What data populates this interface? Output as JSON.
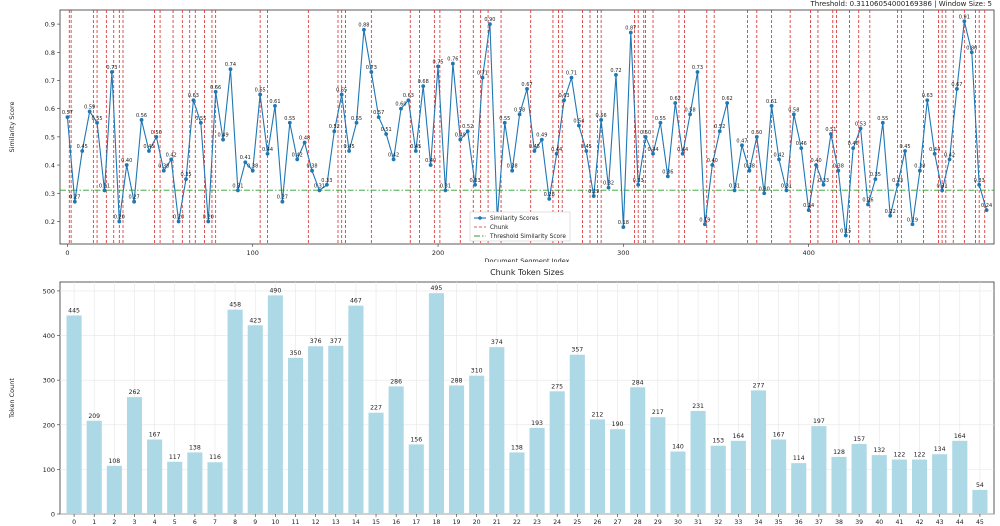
{
  "header": {
    "threshold_text": "Threshold: 0.31106054000169386 | Window Size: 5"
  },
  "chart_data": [
    {
      "type": "line",
      "title": "",
      "xlabel": "Document Segment Index",
      "ylabel": "Similarity Score",
      "xlim": [
        -4,
        500
      ],
      "ylim": [
        0.12,
        0.95
      ],
      "xticks": [
        0,
        100,
        200,
        300,
        400
      ],
      "yticks": [
        0.2,
        0.3,
        0.4,
        0.5,
        0.6,
        0.7,
        0.8,
        0.9
      ],
      "threshold": 0.311,
      "legend": [
        "Similarity Scores",
        "Chunk",
        "Threshold Similarity Score"
      ],
      "legend_position": "lower-center",
      "chunk_boundaries": [
        1,
        2,
        14,
        16,
        21,
        25,
        28,
        30,
        47,
        50,
        57,
        62,
        66,
        69,
        74,
        78,
        80,
        104,
        108,
        130,
        146,
        148,
        150,
        164,
        185,
        190,
        198,
        201,
        212,
        219,
        223,
        227,
        234,
        250,
        262,
        265,
        267,
        278,
        282,
        286,
        288,
        306,
        308,
        311,
        312,
        316,
        330,
        333,
        345,
        349,
        367,
        372,
        380,
        390,
        401,
        405,
        413,
        415,
        422,
        427,
        433,
        448,
        450,
        462,
        470,
        472,
        474,
        478,
        484,
        490,
        492,
        495
      ],
      "series": [
        {
          "name": "Similarity Scores",
          "x": [
            0,
            4,
            8,
            12,
            16,
            20,
            24,
            28,
            32,
            36,
            40,
            44,
            48,
            52,
            56,
            60,
            64,
            68,
            72,
            76,
            80,
            84,
            88,
            92,
            96,
            100,
            104,
            108,
            112,
            116,
            120,
            124,
            128,
            132,
            136,
            140,
            144,
            148,
            152,
            156,
            160,
            164,
            168,
            172,
            176,
            180,
            184,
            188,
            192,
            196,
            200,
            204,
            208,
            212,
            216,
            220,
            224,
            228,
            232,
            236,
            240,
            244,
            248,
            252,
            256,
            260,
            264,
            268,
            272,
            276,
            280,
            284,
            288,
            292,
            296,
            300,
            304,
            308,
            312,
            316,
            320,
            324,
            328,
            332,
            336,
            340,
            344,
            348,
            352,
            356,
            360,
            364,
            368,
            372,
            376,
            380,
            384,
            388,
            392,
            396,
            400,
            404,
            408,
            412,
            416,
            420,
            424,
            428,
            432,
            436,
            440,
            444,
            448,
            452,
            456,
            460,
            464,
            468,
            472,
            476,
            480,
            484,
            488,
            492,
            496
          ],
          "y": [
            0.57,
            0.27,
            0.45,
            0.59,
            0.55,
            0.31,
            0.73,
            0.2,
            0.4,
            0.27,
            0.56,
            0.45,
            0.5,
            0.38,
            0.42,
            0.2,
            0.35,
            0.63,
            0.55,
            0.2,
            0.66,
            0.49,
            0.74,
            0.31,
            0.41,
            0.38,
            0.65,
            0.44,
            0.61,
            0.27,
            0.55,
            0.42,
            0.48,
            0.38,
            0.31,
            0.33,
            0.52,
            0.65,
            0.45,
            0.55,
            0.88,
            0.73,
            0.57,
            0.51,
            0.42,
            0.6,
            0.63,
            0.45,
            0.68,
            0.4,
            0.75,
            0.31,
            0.76,
            0.49,
            0.52,
            0.33,
            0.71,
            0.9,
            0.21,
            0.55,
            0.38,
            0.58,
            0.67,
            0.45,
            0.49,
            0.28,
            0.44,
            0.63,
            0.71,
            0.54,
            0.45,
            0.29,
            0.56,
            0.32,
            0.72,
            0.18,
            0.87,
            0.33,
            0.5,
            0.44,
            0.55,
            0.36,
            0.62,
            0.44,
            0.58,
            0.73,
            0.19,
            0.4,
            0.52,
            0.62,
            0.31,
            0.47,
            0.38,
            0.5,
            0.3,
            0.61,
            0.42,
            0.31,
            0.58,
            0.46,
            0.24,
            0.4,
            0.33,
            0.51,
            0.38,
            0.15,
            0.46,
            0.53,
            0.26,
            0.35,
            0.55,
            0.22,
            0.33,
            0.45,
            0.19,
            0.38,
            0.63,
            0.44,
            0.31,
            0.42,
            0.67,
            0.91,
            0.8,
            0.33,
            0.24
          ]
        }
      ]
    },
    {
      "type": "bar",
      "title": "Chunk Token Sizes",
      "xlabel": "",
      "ylabel": "Token Count",
      "ylim": [
        0,
        520
      ],
      "yticks": [
        0,
        100,
        200,
        300,
        400,
        500
      ],
      "categories": [
        "0",
        "1",
        "2",
        "3",
        "4",
        "5",
        "6",
        "7",
        "8",
        "9",
        "10",
        "11",
        "12",
        "13",
        "14",
        "15",
        "16",
        "17",
        "18",
        "19",
        "20",
        "21",
        "22",
        "23",
        "24",
        "25",
        "26",
        "27",
        "28",
        "29",
        "30",
        "31",
        "32",
        "33",
        "34",
        "35",
        "36",
        "37",
        "38",
        "39",
        "40",
        "41",
        "42",
        "43",
        "44",
        "45"
      ],
      "values": [
        445,
        209,
        108,
        262,
        167,
        117,
        138,
        116,
        458,
        423,
        490,
        350,
        376,
        377,
        467,
        227,
        286,
        156,
        495,
        288,
        310,
        374,
        138,
        193,
        275,
        357,
        212,
        190,
        284,
        217,
        140,
        231,
        153,
        164,
        277,
        167,
        114,
        197,
        128,
        157,
        132,
        122,
        122,
        134,
        164,
        54
      ],
      "value_labels": [
        "445",
        "209",
        "108",
        "262",
        "167",
        "117",
        "138",
        "116",
        "458",
        "423",
        "490",
        "350",
        "376",
        "377",
        "467",
        "227",
        "286",
        "156",
        "495",
        "288",
        "310",
        "374",
        "138",
        "193",
        "275",
        "357",
        "212",
        "190",
        "284",
        "217",
        "140",
        "231",
        "153",
        "164",
        "277",
        "167",
        "114",
        "197",
        "128",
        "157",
        "132",
        "122",
        "122",
        "134",
        "164",
        "54"
      ]
    }
  ]
}
